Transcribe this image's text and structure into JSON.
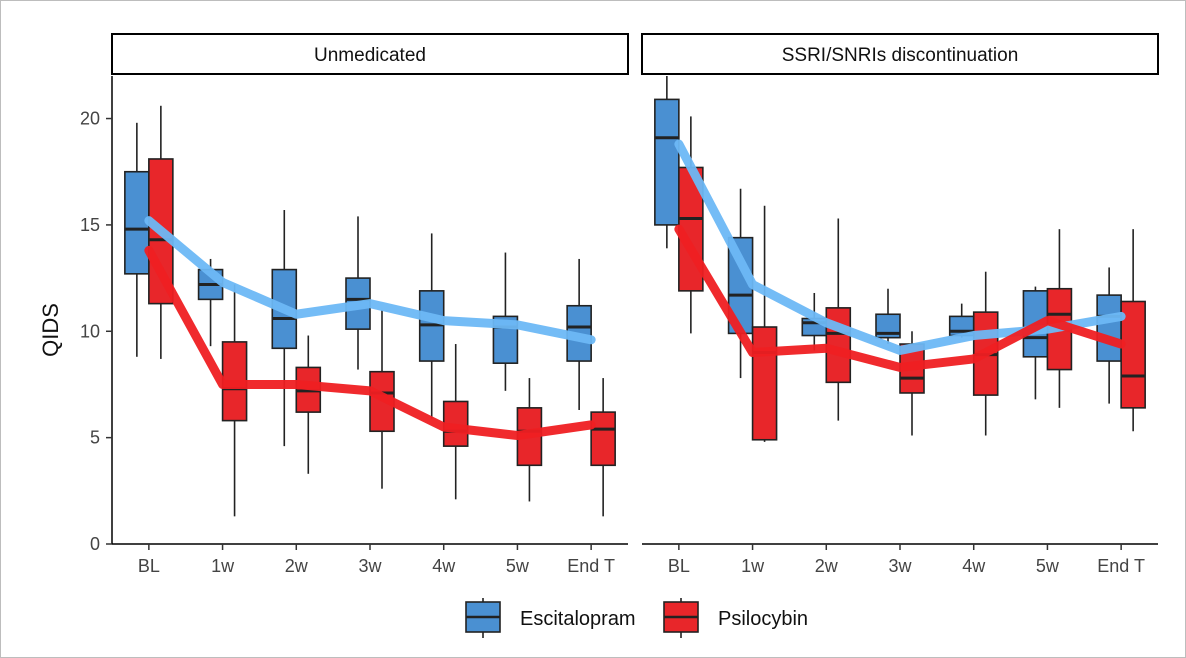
{
  "chart_data": {
    "type": "boxplot",
    "ylabel": "QIDS",
    "xlabel": "",
    "ylim": [
      0,
      22
    ],
    "yticks": [
      0,
      5,
      10,
      15,
      20
    ],
    "categories": [
      "BL",
      "1w",
      "2w",
      "3w",
      "4w",
      "5w",
      "End T"
    ],
    "legend": {
      "position": "bottom",
      "entries": [
        {
          "name": "Escitalopram",
          "color": "#4a90d2"
        },
        {
          "name": "Psilocybin",
          "color": "#e8262a"
        }
      ]
    },
    "series_colors": {
      "box": {
        "Escitalopram": "#4a90d2",
        "Psilocybin": "#e8262a"
      },
      "line": {
        "Escitalopram": "#6db8f5",
        "Psilocybin": "#ef1f22"
      }
    },
    "panels": [
      {
        "title": "Unmedicated",
        "mean_lines": {
          "Escitalopram": [
            15.2,
            12.3,
            10.8,
            11.3,
            10.5,
            10.3,
            9.6
          ],
          "Psilocybin": [
            13.8,
            7.5,
            7.5,
            7.2,
            5.5,
            5.1,
            5.6
          ]
        },
        "boxes": {
          "Escitalopram": [
            {
              "min": 8.8,
              "q1": 12.7,
              "median": 14.8,
              "q3": 17.5,
              "max": 19.8
            },
            {
              "min": 9.3,
              "q1": 11.5,
              "median": 12.2,
              "q3": 12.9,
              "max": 13.4
            },
            {
              "min": 4.6,
              "q1": 9.2,
              "median": 10.6,
              "q3": 12.9,
              "max": 15.7
            },
            {
              "min": 8.2,
              "q1": 10.1,
              "median": 11.5,
              "q3": 12.5,
              "max": 15.4
            },
            {
              "min": 5.9,
              "q1": 8.6,
              "median": 10.3,
              "q3": 11.9,
              "max": 14.6
            },
            {
              "min": 7.2,
              "q1": 8.5,
              "median": 10.2,
              "q3": 10.7,
              "max": 13.7
            },
            {
              "min": 6.3,
              "q1": 8.6,
              "median": 10.2,
              "q3": 11.2,
              "max": 13.4
            }
          ],
          "Psilocybin": [
            {
              "min": 8.7,
              "q1": 11.3,
              "median": 14.3,
              "q3": 18.1,
              "max": 20.6
            },
            {
              "min": 1.3,
              "q1": 5.8,
              "median": 7.3,
              "q3": 9.5,
              "max": 12.2
            },
            {
              "min": 3.3,
              "q1": 6.2,
              "median": 7.2,
              "q3": 8.3,
              "max": 9.8
            },
            {
              "min": 2.6,
              "q1": 5.3,
              "median": 7.1,
              "q3": 8.1,
              "max": 11.0
            },
            {
              "min": 2.1,
              "q1": 4.6,
              "median": 5.3,
              "q3": 6.7,
              "max": 9.4
            },
            {
              "min": 2.0,
              "q1": 3.7,
              "median": 5.3,
              "q3": 6.4,
              "max": 7.8
            },
            {
              "min": 1.3,
              "q1": 3.7,
              "median": 5.4,
              "q3": 6.2,
              "max": 7.8
            }
          ]
        }
      },
      {
        "title": "SSRI/SNRIs discontinuation",
        "mean_lines": {
          "Escitalopram": [
            18.8,
            12.2,
            10.4,
            9.1,
            9.8,
            10.1,
            10.7
          ],
          "Psilocybin": [
            14.8,
            9.0,
            9.2,
            8.3,
            8.7,
            10.5,
            9.4
          ]
        },
        "boxes": {
          "Escitalopram": [
            {
              "min": 13.9,
              "q1": 15.0,
              "median": 19.1,
              "q3": 20.9,
              "max": 22.0
            },
            {
              "min": 7.8,
              "q1": 9.9,
              "median": 11.7,
              "q3": 14.4,
              "max": 16.7
            },
            {
              "min": 9.1,
              "q1": 9.8,
              "median": 10.4,
              "q3": 10.6,
              "max": 11.8
            },
            {
              "min": 9.4,
              "q1": 9.7,
              "median": 9.9,
              "q3": 10.8,
              "max": 12.0
            },
            {
              "min": 9.7,
              "q1": 9.8,
              "median": 10.0,
              "q3": 10.7,
              "max": 11.3
            },
            {
              "min": 6.8,
              "q1": 8.8,
              "median": 9.7,
              "q3": 11.9,
              "max": 12.1
            },
            {
              "min": 6.6,
              "q1": 8.6,
              "median": 10.7,
              "q3": 11.7,
              "max": 13.0
            }
          ],
          "Psilocybin": [
            {
              "min": 9.9,
              "q1": 11.9,
              "median": 15.3,
              "q3": 17.7,
              "max": 20.1
            },
            {
              "min": 4.8,
              "q1": 4.9,
              "median": 9.0,
              "q3": 10.2,
              "max": 15.9
            },
            {
              "min": 5.8,
              "q1": 7.6,
              "median": 9.9,
              "q3": 11.1,
              "max": 15.3
            },
            {
              "min": 5.1,
              "q1": 7.1,
              "median": 7.8,
              "q3": 9.4,
              "max": 10.0
            },
            {
              "min": 5.1,
              "q1": 7.0,
              "median": 8.9,
              "q3": 10.9,
              "max": 12.8
            },
            {
              "min": 6.4,
              "q1": 8.2,
              "median": 10.8,
              "q3": 12.0,
              "max": 14.8
            },
            {
              "min": 5.3,
              "q1": 6.4,
              "median": 7.9,
              "q3": 11.4,
              "max": 14.8
            }
          ]
        }
      }
    ]
  }
}
